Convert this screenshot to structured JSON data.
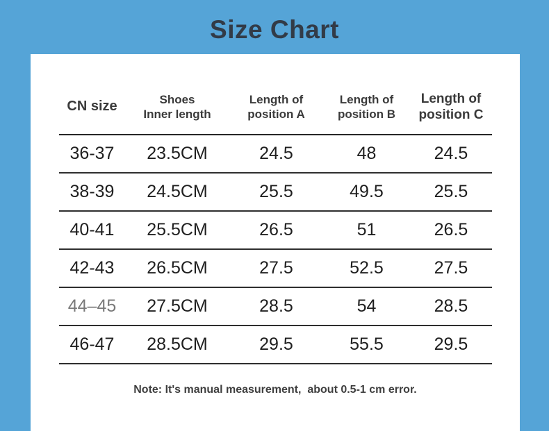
{
  "title": "Size Chart",
  "colors": {
    "background": "#55a4d7",
    "card": "#ffffff",
    "title_text": "#323b47",
    "divider_line": "#2e2e2e",
    "cell_text": "#1f1f1f",
    "muted_cell_text": "#7a7a7a"
  },
  "table": {
    "headers": [
      {
        "line1": "CN size",
        "line2": ""
      },
      {
        "line1": "Shoes",
        "line2": "Inner length"
      },
      {
        "line1": "Length of",
        "line2": "position A"
      },
      {
        "line1": "Length of",
        "line2": "position B"
      },
      {
        "line1": "Length of",
        "line2": "position C"
      }
    ],
    "rows": [
      {
        "cells": [
          "36-37",
          "23.5CM",
          "24.5",
          "48",
          "24.5"
        ]
      },
      {
        "cells": [
          "38-39",
          "24.5CM",
          "25.5",
          "49.5",
          "25.5"
        ]
      },
      {
        "cells": [
          "40-41",
          "25.5CM",
          "26.5",
          "51",
          "26.5"
        ]
      },
      {
        "cells": [
          "42-43",
          "26.5CM",
          "27.5",
          "52.5",
          "27.5"
        ]
      },
      {
        "cells": [
          "44–45",
          "27.5CM",
          "28.5",
          "54",
          "28.5"
        ]
      },
      {
        "cells": [
          "46-47",
          "28.5CM",
          "29.5",
          "55.5",
          "29.5"
        ]
      }
    ]
  },
  "note": "Note: It's manual measurement,  about 0.5-1 cm error."
}
